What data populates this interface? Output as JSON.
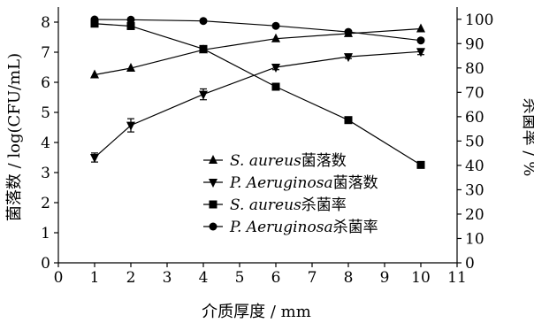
{
  "chart_data": {
    "type": "line",
    "xlabel": "介质厚度 / mm",
    "ylabel_left": "菌落数 / log(CFU/mL)",
    "ylabel_right": "杀菌率 / %",
    "xlim": [
      0,
      11
    ],
    "ylim_left": [
      0,
      8.5
    ],
    "ylim_right": [
      0,
      105
    ],
    "x_ticks": [
      "0",
      "1",
      "2",
      "3",
      "4",
      "5",
      "6",
      "7",
      "8",
      "9",
      "10",
      "11"
    ],
    "y_left_ticks": [
      "0",
      "1",
      "2",
      "3",
      "4",
      "5",
      "6",
      "7",
      "8"
    ],
    "y_right_ticks": [
      "0",
      "10",
      "20",
      "30",
      "40",
      "50",
      "60",
      "70",
      "80",
      "90",
      "100"
    ],
    "grid": false,
    "legend_position": "center-right",
    "series": [
      {
        "name": "S. aureus菌落数",
        "name_italic": "S. aureus",
        "name_suffix": "菌落数",
        "axis": "left",
        "marker": "triangle-up",
        "x": [
          1,
          2,
          4,
          6,
          8,
          10
        ],
        "values": [
          6.25,
          6.47,
          7.08,
          7.45,
          7.62,
          7.78
        ],
        "errors": [
          0,
          0,
          0,
          0,
          0,
          0
        ]
      },
      {
        "name": "P. Aeruginosa菌落数",
        "name_italic": "P. Aeruginosa",
        "name_suffix": "菌落数",
        "axis": "left",
        "marker": "triangle-down",
        "x": [
          1,
          2,
          4,
          6,
          8,
          10
        ],
        "values": [
          3.5,
          4.57,
          5.6,
          6.5,
          6.85,
          7.02
        ],
        "errors": [
          0.15,
          0.22,
          0.18,
          0.08,
          0.06,
          0.1
        ]
      },
      {
        "name": "S. aureus杀菌率",
        "name_italic": "S. aureus",
        "name_suffix": "杀菌率",
        "axis": "right",
        "marker": "square",
        "x": [
          1,
          2,
          4,
          6,
          8,
          10
        ],
        "values": [
          98.2,
          97.2,
          87.8,
          72.3,
          58.6,
          40.2
        ],
        "errors": [
          0,
          0,
          0,
          0,
          0,
          0
        ]
      },
      {
        "name": "P. Aeruginosa杀菌率",
        "name_italic": "P. Aeruginosa",
        "name_suffix": "杀菌率",
        "axis": "right",
        "marker": "circle",
        "x": [
          1,
          2,
          4,
          6,
          8,
          10
        ],
        "values": [
          99.9,
          99.8,
          99.3,
          97.3,
          94.8,
          91.3
        ],
        "errors": [
          0,
          0,
          0,
          0,
          0,
          0
        ]
      }
    ]
  }
}
